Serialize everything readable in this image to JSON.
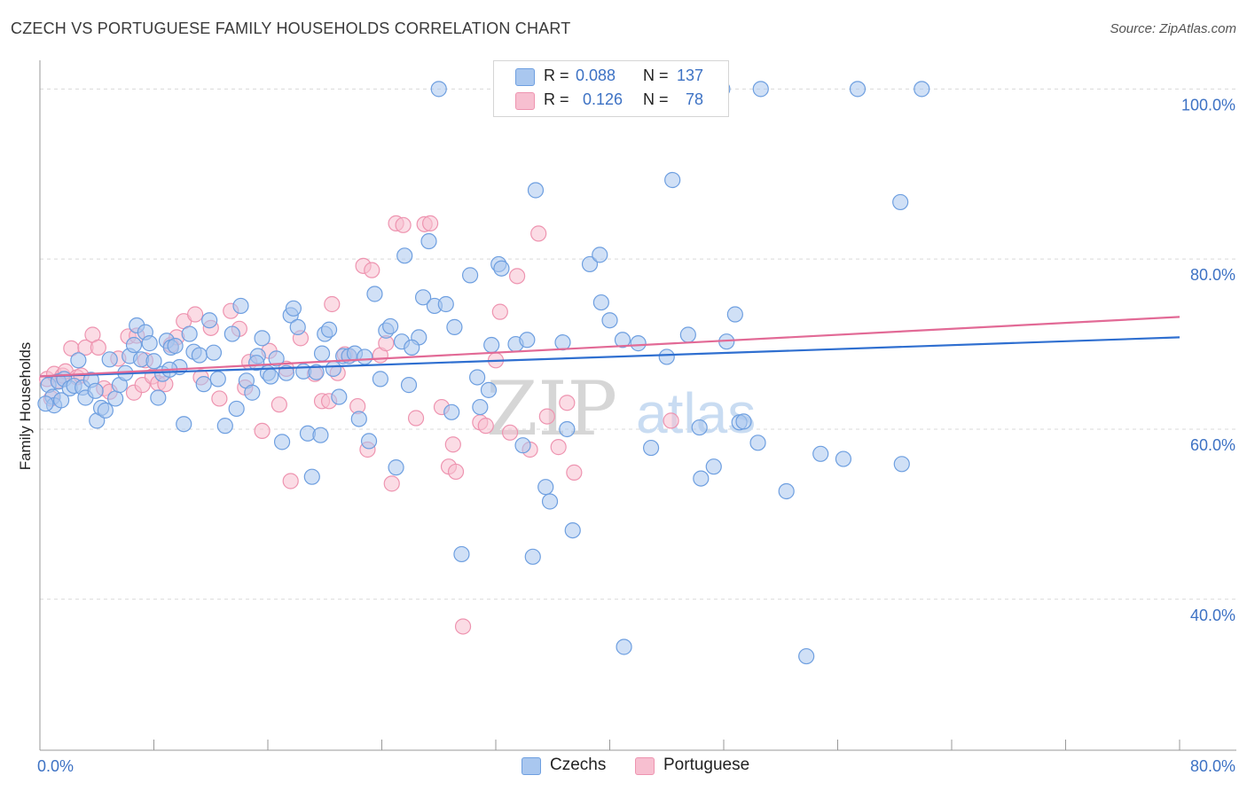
{
  "header": {
    "title": "CZECH VS PORTUGUESE FAMILY HOUSEHOLDS CORRELATION CHART",
    "source": "Source: ZipAtlas.com"
  },
  "legend": {
    "rows": [
      {
        "r_label": "R =",
        "r_value": "0.088",
        "n_label": "N =",
        "n_value": "137"
      },
      {
        "r_label": "R =",
        "r_value": "0.126",
        "n_label": "N =",
        "n_value": "78"
      }
    ]
  },
  "bottom_legend": {
    "czechs": "Czechs",
    "portuguese": "Portuguese"
  },
  "watermark": {
    "zip": "ZIP",
    "atlas": "atlas"
  },
  "colors": {
    "czechs_fill": "#a9c7ef",
    "czechs_stroke": "#6e9fe0",
    "czechs_line": "#2f6fd0",
    "portuguese_fill": "#f7bfd0",
    "portuguese_stroke": "#ee94b0",
    "portuguese_line": "#e26a96",
    "tick_text": "#3d72c4",
    "grid": "#d9d9d9"
  },
  "chart_data": {
    "type": "scatter",
    "title": "CZECH VS PORTUGUESE FAMILY HOUSEHOLDS CORRELATION CHART",
    "xlabel": "",
    "ylabel": "Family Households",
    "xlim": [
      0,
      80
    ],
    "ylim": [
      21,
      104
    ],
    "x_tick_labels": [
      {
        "value": 0,
        "label": "0.0%"
      },
      {
        "value": 80,
        "label": "80.0%"
      }
    ],
    "y_tick_labels": [
      {
        "value": 40,
        "label": "40.0%"
      },
      {
        "value": 60,
        "label": "60.0%"
      },
      {
        "value": 80,
        "label": "80.0%"
      },
      {
        "value": 100,
        "label": "100.0%"
      }
    ],
    "grid": true,
    "legend_position": "top-center",
    "series": [
      {
        "name": "Czechs",
        "r": 0.088,
        "n": 137,
        "trend": {
          "x": [
            0,
            80
          ],
          "y": [
            66.2,
            70.8
          ]
        },
        "points": [
          [
            0.6,
            65.2
          ],
          [
            0.9,
            63.8
          ],
          [
            1.0,
            62.8
          ],
          [
            1.3,
            65.6
          ],
          [
            1.5,
            63.4
          ],
          [
            1.7,
            65.9
          ],
          [
            2.1,
            64.8
          ],
          [
            2.4,
            65.1
          ],
          [
            2.7,
            68.1
          ],
          [
            3.0,
            64.9
          ],
          [
            3.2,
            63.7
          ],
          [
            3.6,
            65.8
          ],
          [
            4.0,
            61.0
          ],
          [
            4.3,
            62.5
          ],
          [
            4.6,
            62.2
          ],
          [
            4.9,
            68.2
          ],
          [
            5.3,
            63.6
          ],
          [
            5.6,
            65.2
          ],
          [
            6.0,
            66.6
          ],
          [
            6.3,
            68.6
          ],
          [
            6.6,
            69.9
          ],
          [
            6.8,
            72.2
          ],
          [
            7.1,
            68.2
          ],
          [
            7.4,
            71.4
          ],
          [
            7.7,
            70.1
          ],
          [
            8.0,
            68.0
          ],
          [
            8.3,
            63.7
          ],
          [
            8.6,
            66.5
          ],
          [
            8.9,
            70.4
          ],
          [
            9.2,
            69.6
          ],
          [
            9.5,
            69.8
          ],
          [
            9.8,
            67.3
          ],
          [
            10.1,
            60.6
          ],
          [
            10.5,
            71.2
          ],
          [
            10.8,
            69.1
          ],
          [
            11.2,
            68.7
          ],
          [
            11.5,
            65.3
          ],
          [
            11.9,
            72.8
          ],
          [
            12.2,
            69.0
          ],
          [
            12.5,
            65.9
          ],
          [
            13.0,
            60.4
          ],
          [
            13.5,
            71.2
          ],
          [
            13.8,
            62.4
          ],
          [
            14.1,
            74.5
          ],
          [
            14.5,
            65.7
          ],
          [
            14.9,
            64.3
          ],
          [
            15.3,
            68.6
          ],
          [
            15.6,
            70.7
          ],
          [
            16.0,
            66.6
          ],
          [
            16.2,
            66.2
          ],
          [
            16.6,
            68.3
          ],
          [
            17.0,
            58.5
          ],
          [
            17.3,
            66.6
          ],
          [
            17.6,
            73.4
          ],
          [
            17.8,
            74.2
          ],
          [
            18.1,
            72.0
          ],
          [
            18.5,
            66.8
          ],
          [
            18.8,
            59.5
          ],
          [
            19.1,
            54.4
          ],
          [
            19.4,
            66.7
          ],
          [
            19.7,
            59.3
          ],
          [
            20.0,
            71.2
          ],
          [
            20.3,
            71.7
          ],
          [
            20.6,
            67.1
          ],
          [
            21.0,
            63.8
          ],
          [
            21.3,
            68.6
          ],
          [
            21.7,
            68.6
          ],
          [
            22.1,
            68.9
          ],
          [
            22.4,
            61.2
          ],
          [
            22.8,
            68.5
          ],
          [
            23.1,
            58.6
          ],
          [
            23.5,
            75.9
          ],
          [
            23.9,
            65.9
          ],
          [
            24.3,
            71.6
          ],
          [
            24.6,
            72.1
          ],
          [
            25.0,
            55.5
          ],
          [
            25.4,
            70.3
          ],
          [
            25.6,
            80.4
          ],
          [
            25.9,
            65.2
          ],
          [
            26.6,
            70.8
          ],
          [
            26.9,
            75.5
          ],
          [
            27.3,
            82.1
          ],
          [
            27.7,
            74.5
          ],
          [
            28.0,
            100.0
          ],
          [
            28.5,
            74.7
          ],
          [
            28.9,
            62.0
          ],
          [
            29.1,
            72.0
          ],
          [
            29.6,
            45.3
          ],
          [
            30.2,
            78.1
          ],
          [
            30.7,
            66.1
          ],
          [
            30.9,
            62.6
          ],
          [
            31.5,
            64.6
          ],
          [
            32.2,
            79.4
          ],
          [
            32.4,
            78.9
          ],
          [
            33.4,
            70.0
          ],
          [
            33.9,
            58.1
          ],
          [
            34.2,
            70.5
          ],
          [
            34.6,
            45.0
          ],
          [
            34.8,
            88.1
          ],
          [
            35.5,
            53.2
          ],
          [
            35.8,
            51.5
          ],
          [
            37.0,
            60.0
          ],
          [
            37.4,
            48.1
          ],
          [
            38.6,
            79.4
          ],
          [
            39.3,
            80.5
          ],
          [
            39.4,
            74.9
          ],
          [
            40.0,
            72.8
          ],
          [
            41.0,
            34.4
          ],
          [
            41.5,
            100.0
          ],
          [
            42.0,
            70.1
          ],
          [
            42.9,
            57.8
          ],
          [
            44.0,
            68.5
          ],
          [
            44.4,
            89.3
          ],
          [
            45.5,
            71.1
          ],
          [
            46.3,
            60.2
          ],
          [
            46.4,
            54.2
          ],
          [
            47.3,
            55.6
          ],
          [
            47.9,
            100.0
          ],
          [
            48.2,
            70.3
          ],
          [
            48.8,
            73.5
          ],
          [
            49.1,
            60.8
          ],
          [
            49.4,
            60.9
          ],
          [
            50.4,
            58.4
          ],
          [
            50.6,
            100.0
          ],
          [
            52.4,
            52.7
          ],
          [
            53.8,
            33.3
          ],
          [
            54.8,
            57.1
          ],
          [
            56.4,
            56.5
          ],
          [
            57.4,
            100.0
          ],
          [
            60.4,
            86.7
          ],
          [
            60.5,
            55.9
          ],
          [
            61.9,
            100.0
          ],
          [
            0.4,
            63.0
          ],
          [
            3.9,
            64.5
          ],
          [
            9.1,
            67.0
          ],
          [
            15.2,
            67.8
          ],
          [
            19.8,
            68.9
          ],
          [
            26.1,
            69.6
          ],
          [
            31.7,
            69.9
          ],
          [
            36.7,
            70.2
          ],
          [
            40.9,
            70.5
          ]
        ]
      },
      {
        "name": "Portuguese",
        "r": 0.126,
        "n": 78,
        "trend": {
          "x": [
            0,
            80
          ],
          "y": [
            66.2,
            73.2
          ]
        },
        "points": [
          [
            0.5,
            65.9
          ],
          [
            0.8,
            63.6
          ],
          [
            1.0,
            66.5
          ],
          [
            1.3,
            65.7
          ],
          [
            1.6,
            66.3
          ],
          [
            1.8,
            66.8
          ],
          [
            2.2,
            69.5
          ],
          [
            2.6,
            66.1
          ],
          [
            2.9,
            66.3
          ],
          [
            3.2,
            69.6
          ],
          [
            3.7,
            71.1
          ],
          [
            4.1,
            69.6
          ],
          [
            4.5,
            64.8
          ],
          [
            4.9,
            64.4
          ],
          [
            5.5,
            68.3
          ],
          [
            6.2,
            70.9
          ],
          [
            6.6,
            64.3
          ],
          [
            6.8,
            71.0
          ],
          [
            7.2,
            65.2
          ],
          [
            7.4,
            68.1
          ],
          [
            7.9,
            66.2
          ],
          [
            8.3,
            65.4
          ],
          [
            8.8,
            65.3
          ],
          [
            9.2,
            69.9
          ],
          [
            9.6,
            70.8
          ],
          [
            10.1,
            72.7
          ],
          [
            10.9,
            73.5
          ],
          [
            11.3,
            66.1
          ],
          [
            12.0,
            71.9
          ],
          [
            12.6,
            63.6
          ],
          [
            13.4,
            73.9
          ],
          [
            14.0,
            71.8
          ],
          [
            14.4,
            64.9
          ],
          [
            14.7,
            67.9
          ],
          [
            15.6,
            59.8
          ],
          [
            16.1,
            69.2
          ],
          [
            16.8,
            62.9
          ],
          [
            17.3,
            67.1
          ],
          [
            17.6,
            53.9
          ],
          [
            18.3,
            70.7
          ],
          [
            19.3,
            66.5
          ],
          [
            19.8,
            63.3
          ],
          [
            20.3,
            63.3
          ],
          [
            20.5,
            74.7
          ],
          [
            20.9,
            66.6
          ],
          [
            21.4,
            68.8
          ],
          [
            21.7,
            68.6
          ],
          [
            22.3,
            62.7
          ],
          [
            22.7,
            79.2
          ],
          [
            23.0,
            57.6
          ],
          [
            23.3,
            78.7
          ],
          [
            23.9,
            68.7
          ],
          [
            24.3,
            70.1
          ],
          [
            24.7,
            53.6
          ],
          [
            25.0,
            84.2
          ],
          [
            25.5,
            84.0
          ],
          [
            26.4,
            61.3
          ],
          [
            27.0,
            84.1
          ],
          [
            27.4,
            84.2
          ],
          [
            28.2,
            62.6
          ],
          [
            28.7,
            55.6
          ],
          [
            29.0,
            58.2
          ],
          [
            29.2,
            55.0
          ],
          [
            29.7,
            36.8
          ],
          [
            30.9,
            60.8
          ],
          [
            31.3,
            60.4
          ],
          [
            32.0,
            68.1
          ],
          [
            32.3,
            73.8
          ],
          [
            33.0,
            59.6
          ],
          [
            33.5,
            78.0
          ],
          [
            34.4,
            57.6
          ],
          [
            35.0,
            83.0
          ],
          [
            35.6,
            61.5
          ],
          [
            36.4,
            57.9
          ],
          [
            37.0,
            63.1
          ],
          [
            37.5,
            54.9
          ],
          [
            37.8,
            100.0
          ],
          [
            44.3,
            61.0
          ]
        ]
      }
    ]
  }
}
